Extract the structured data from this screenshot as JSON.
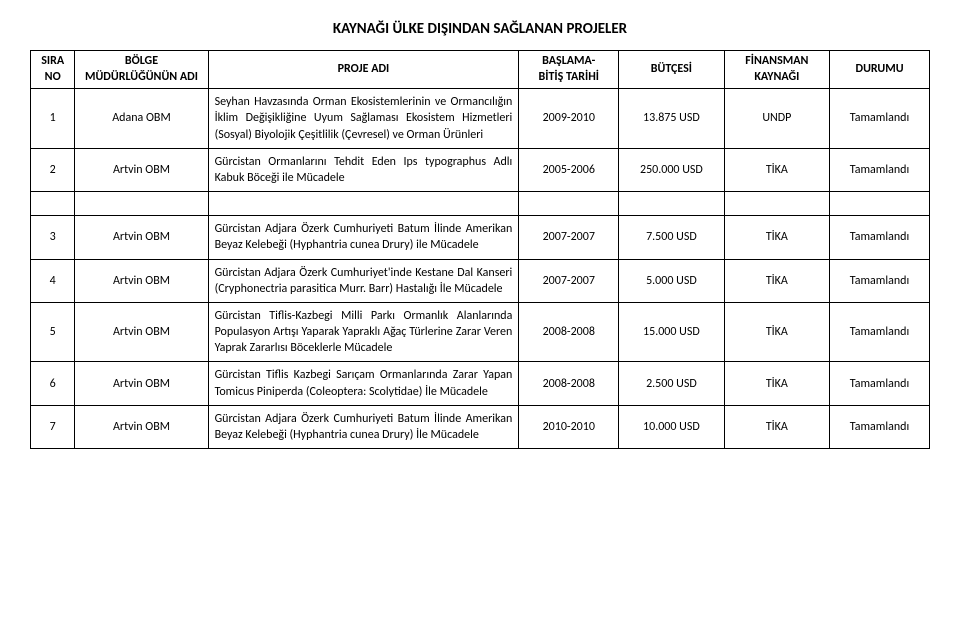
{
  "title": "KAYNAĞI ÜLKE DIŞINDAN SAĞLANAN PROJELER",
  "headers": {
    "sira": "SIRA\nNO",
    "bolge": "BÖLGE\nMÜDÜRLÜĞÜNÜN ADI",
    "proje": "PROJE ADI",
    "tarih": "BAŞLAMA-\nBİTİŞ TARİHİ",
    "butce": "BÜTÇESİ",
    "finans": "FİNANSMAN\nKAYNAĞI",
    "durum": "DURUMU"
  },
  "rows": [
    {
      "no": "1",
      "bolge": "Adana OBM",
      "proje": "Seyhan Havzasında Orman Ekosistemlerinin ve Ormancılığın İklim Değişikliğine Uyum Sağlaması Ekosistem Hizmetleri (Sosyal) Biyolojik Çeşitlilik (Çevresel) ve Orman Ürünleri",
      "tarih": "2009-2010",
      "butce": "13.875 USD",
      "finans": "UNDP",
      "durum": "Tamamlandı"
    },
    {
      "no": "2",
      "bolge": "Artvin OBM",
      "proje": "Gürcistan Ormanlarını Tehdit Eden Ips typographus Adlı Kabuk Böceği ile Mücadele",
      "tarih": "2005-2006",
      "butce": "250.000 USD",
      "finans": "TİKA",
      "durum": "Tamamlandı"
    },
    {
      "no": "3",
      "bolge": "Artvin OBM",
      "proje": "Gürcistan Adjara Özerk Cumhuriyeti Batum İlinde Amerikan Beyaz Kelebeği (Hyphantria cunea Drury) ile Mücadele",
      "tarih": "2007-2007",
      "butce": "7.500 USD",
      "finans": "TİKA",
      "durum": "Tamamlandı"
    },
    {
      "no": "4",
      "bolge": "Artvin OBM",
      "proje": "Gürcistan Adjara Özerk Cumhuriyet'inde Kestane Dal Kanseri (Cryphonectria parasitica Murr. Barr) Hastalığı İle Mücadele",
      "tarih": "2007-2007",
      "butce": "5.000 USD",
      "finans": "TİKA",
      "durum": "Tamamlandı"
    },
    {
      "no": "5",
      "bolge": "Artvin OBM",
      "proje": "Gürcistan Tiflis-Kazbegi Milli Parkı Ormanlık Alanlarında Populasyon Artışı Yaparak Yapraklı Ağaç Türlerine Zarar Veren Yaprak Zararlısı Böceklerle Mücadele",
      "tarih": "2008-2008",
      "butce": "15.000 USD",
      "finans": "TİKA",
      "durum": "Tamamlandı"
    },
    {
      "no": "6",
      "bolge": "Artvin OBM",
      "proje": "Gürcistan Tiflis Kazbegi Sarıçam Ormanlarında Zarar Yapan Tomicus Piniperda (Coleoptera: Scolytidae) İle Mücadele",
      "tarih": "2008-2008",
      "butce": "2.500 USD",
      "finans": "TİKA",
      "durum": "Tamamlandı"
    },
    {
      "no": "7",
      "bolge": "Artvin OBM",
      "proje": "Gürcistan Adjara Özerk Cumhuriyeti Batum İlinde Amerikan Beyaz Kelebeği (Hyphantria cunea Drury) İle Mücadele",
      "tarih": "2010-2010",
      "butce": "10.000 USD",
      "finans": "TİKA",
      "durum": "Tamamlandı"
    }
  ]
}
